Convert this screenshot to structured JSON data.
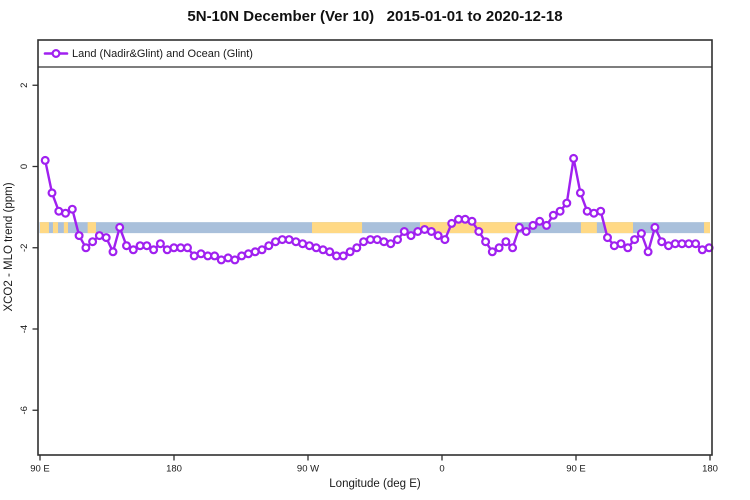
{
  "title": "5N-10N December (Ver 10)   2015-01-01 to 2020-12-18",
  "legend": {
    "label": "Land (Nadir&Glint) and Ocean (Glint)"
  },
  "axes": {
    "x": {
      "label": "Longitude (deg E)",
      "tick_labels": [
        "90 E",
        "180",
        "90 W",
        "0",
        "90 E",
        "180"
      ],
      "tick_degrees": [
        90,
        180,
        270,
        360,
        450,
        540
      ]
    },
    "y": {
      "label": "XCO2 - MLO trend (ppm)",
      "tick_labels": [
        "2",
        "0",
        "-2",
        "-4",
        "-6"
      ],
      "tick_values": [
        2,
        0,
        -2,
        -4,
        -6
      ]
    }
  },
  "colors": {
    "series_purple": "#A020F0",
    "band_ocean_blue": "#A9C0DB",
    "band_land_yellow": "#FFD985",
    "frame": "#303030"
  },
  "chart_data": {
    "type": "line",
    "title": "5N-10N December (Ver 10)   2015-01-01 to 2020-12-18",
    "xlabel": "Longitude (deg E)",
    "ylabel": "XCO2 - MLO trend (ppm)",
    "xlim_deg_unwrapped": [
      90,
      540
    ],
    "ylim": [
      -7.1,
      3.1
    ],
    "axis_note": "longitude axis wraps: 90E to 180 to 90W to 0 to 90E to 180",
    "legend_position": "top-left",
    "grid": false,
    "reference_band": {
      "y_range": [
        -1.37,
        -1.64
      ],
      "ocean_color": "#A9C0DB",
      "land_color": "#FFD985",
      "land_segments_deg_unwrapped": [
        [
          90,
          96
        ],
        [
          98.7,
          102.1
        ],
        [
          106,
          108.8
        ],
        [
          122,
          127.6
        ],
        [
          272.7,
          306.3
        ],
        [
          345.2,
          410.4
        ],
        [
          453.3,
          464
        ],
        [
          469.5,
          488.3
        ],
        [
          536,
          540
        ]
      ]
    },
    "series": [
      {
        "name": "Land (Nadir&Glint) and Ocean (Glint)",
        "color": "#A020F0",
        "marker": "open-circle",
        "x_start_deg": 93.5,
        "x_step_deg": 4.55,
        "values": [
          0.15,
          -0.65,
          -1.1,
          -1.15,
          -1.05,
          -1.7,
          -2.0,
          -1.85,
          -1.7,
          -1.75,
          -2.1,
          -1.5,
          -1.95,
          -2.05,
          -1.95,
          -1.95,
          -2.05,
          -1.9,
          -2.05,
          -2.0,
          -2.0,
          -2.0,
          -2.2,
          -2.15,
          -2.2,
          -2.2,
          -2.3,
          -2.25,
          -2.3,
          -2.2,
          -2.15,
          -2.1,
          -2.05,
          -1.95,
          -1.85,
          -1.8,
          -1.8,
          -1.85,
          -1.9,
          -1.95,
          -2.0,
          -2.05,
          -2.1,
          -2.2,
          -2.2,
          -2.1,
          -2.0,
          -1.85,
          -1.8,
          -1.8,
          -1.85,
          -1.9,
          -1.8,
          -1.6,
          -1.7,
          -1.6,
          -1.55,
          -1.6,
          -1.7,
          -1.8,
          -1.4,
          -1.3,
          -1.3,
          -1.35,
          -1.6,
          -1.85,
          -2.1,
          -2.0,
          -1.85,
          -2.0,
          -1.5,
          -1.6,
          -1.45,
          -1.35,
          -1.45,
          -1.2,
          -1.1,
          -0.9,
          0.2,
          -0.65,
          -1.1,
          -1.15,
          -1.1,
          -1.75,
          -1.95,
          -1.9,
          -2.0,
          -1.8,
          -1.65,
          -2.1,
          -1.5,
          -1.85,
          -1.95,
          -1.9,
          -1.9,
          -1.9,
          -1.9,
          -2.05,
          -2.0
        ]
      }
    ]
  }
}
